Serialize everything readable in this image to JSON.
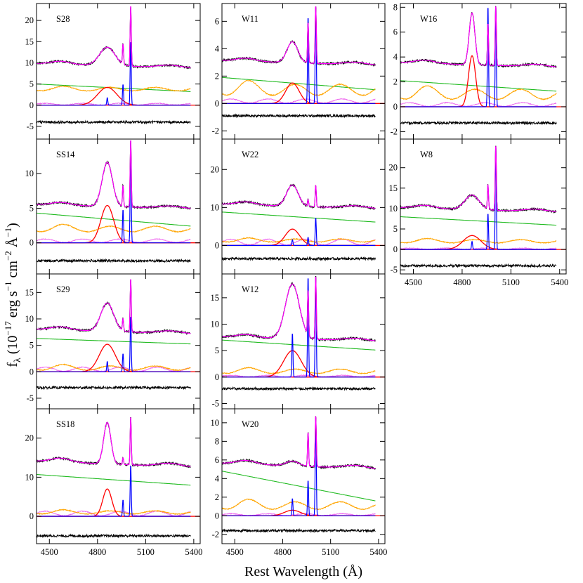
{
  "figure": {
    "xlabel": "Rest Wavelength (Å)",
    "ylabel": "f_λ (10^-17 erg s^-1 cm^-2 Å^-1)",
    "ylabel_parts": {
      "base": "f",
      "sub": "λ",
      "open": " (10",
      "exp1": "−17",
      "mid1": " erg s",
      "exp2": "−1",
      "mid2": " cm",
      "exp3": "−2",
      "mid3": " Å",
      "exp4": "−1",
      "close": ")"
    }
  },
  "colors": {
    "data": "#000000",
    "model": "#ff00ff",
    "powerlaw": "#22bb22",
    "feii": "#ffa500",
    "host": "#ee66ee",
    "broad": "#ff0000",
    "narrow": "#0000ff",
    "residual": "#000000"
  },
  "chart_data": [
    {
      "type": "line",
      "label": "S28",
      "xlim": [
        4420,
        5440
      ],
      "ylim": [
        -8,
        24
      ],
      "yticks": [
        -5,
        0,
        5,
        10,
        15,
        20
      ],
      "xticks": [],
      "continuum": 9.4,
      "powerlaw": [
        5.0,
        3.1
      ],
      "feii": 3.8,
      "residual": -4,
      "host": 0.4,
      "broad": {
        "hb": [
          4.2,
          60
        ],
        "ha": [
          0,
          0
        ]
      },
      "narrow": [
        [
          4861,
          1.8
        ],
        [
          4959,
          5.0
        ],
        [
          5007,
          15.5
        ]
      ],
      "peaks": [
        [
          4861,
          14.5
        ],
        [
          4959,
          16.2
        ],
        [
          5007,
          24
        ]
      ]
    },
    {
      "type": "line",
      "label": "SS14",
      "xlim": [
        4420,
        5440
      ],
      "ylim": [
        -4.5,
        15
      ],
      "yticks": [
        0,
        5,
        10
      ],
      "xticks": [],
      "continuum": 5.3,
      "powerlaw": [
        4.3,
        2.3
      ],
      "feii": 2.0,
      "residual": -2.6,
      "host": 0.5,
      "broad": {
        "hb": [
          5.4,
          40
        ],
        "ha": [
          0,
          0
        ]
      },
      "narrow": [
        [
          4861,
          0
        ],
        [
          4959,
          4.9
        ],
        [
          5007,
          15.0
        ]
      ],
      "peaks": [
        [
          4861,
          12.8
        ],
        [
          4959,
          9.7
        ],
        [
          5007,
          15.3
        ]
      ]
    },
    {
      "type": "line",
      "label": "S29",
      "xlim": [
        4420,
        5440
      ],
      "ylim": [
        -7,
        18.5
      ],
      "yticks": [
        -5,
        0,
        5,
        10,
        15
      ],
      "xticks": [],
      "continuum": 7.7,
      "powerlaw": [
        6.3,
        5.2
      ],
      "feii": 0.7,
      "residual": -3,
      "host": 0.8,
      "broad": {
        "hb": [
          5.2,
          50
        ],
        "ha": [
          0,
          0
        ]
      },
      "narrow": [
        [
          4861,
          2.0
        ],
        [
          4959,
          3.5
        ],
        [
          5007,
          10.8
        ]
      ],
      "peaks": [
        [
          4861,
          14
        ],
        [
          4959,
          11
        ],
        [
          5007,
          18
        ]
      ]
    },
    {
      "type": "line",
      "label": "SS18",
      "xlim": [
        4420,
        5440
      ],
      "ylim": [
        -7,
        27.5
      ],
      "yticks": [
        0,
        10,
        20
      ],
      "xticks": [
        4500,
        4800,
        5100,
        5400
      ],
      "continuum": 13.5,
      "powerlaw": [
        10.7,
        7.8
      ],
      "feii": 1.0,
      "residual": -5,
      "host": 1.2,
      "broad": {
        "hb": [
          7.0,
          28
        ],
        "ha": [
          0,
          0
        ]
      },
      "narrow": [
        [
          4861,
          0
        ],
        [
          4959,
          4.3
        ],
        [
          5007,
          13.5
        ]
      ],
      "peaks": [
        [
          4861,
          26
        ],
        [
          4959,
          16
        ],
        [
          5007,
          26
        ]
      ]
    },
    {
      "type": "line",
      "label": "W11",
      "xlim": [
        4420,
        5440
      ],
      "ylim": [
        -2.6,
        7.3
      ],
      "yticks": [
        -2,
        0,
        2,
        4,
        6
      ],
      "xticks": [],
      "continuum": 3.0,
      "powerlaw": [
        1.9,
        0.95
      ],
      "feii": 1.0,
      "residual": -0.9,
      "host": 0.3,
      "broad": {
        "hb": [
          1.5,
          42
        ],
        "ha": [
          0,
          0
        ]
      },
      "narrow": [
        [
          4861,
          0
        ],
        [
          4959,
          6.5
        ],
        [
          5007,
          7.3
        ]
      ],
      "peaks": [
        [
          4861,
          4.8
        ],
        [
          4959,
          7.3
        ],
        [
          5007,
          7.3
        ]
      ]
    },
    {
      "type": "line",
      "label": "W22",
      "xlim": [
        4420,
        5440
      ],
      "ylim": [
        -7.5,
        28
      ],
      "yticks": [
        0,
        10,
        20
      ],
      "xticks": [],
      "continuum": 10.4,
      "powerlaw": [
        8.8,
        6.0
      ],
      "feii": 1.3,
      "residual": -3.5,
      "host": 1.5,
      "broad": {
        "hb": [
          4.3,
          45
        ],
        "ha": [
          0,
          0
        ]
      },
      "narrow": [
        [
          4861,
          1.6
        ],
        [
          4959,
          2.2
        ],
        [
          5007,
          7.5
        ]
      ],
      "peaks": [
        [
          4861,
          17
        ],
        [
          4959,
          13
        ],
        [
          5007,
          16.2
        ]
      ]
    },
    {
      "type": "line",
      "label": "W12",
      "xlim": [
        4420,
        5440
      ],
      "ylim": [
        -6,
        19.5
      ],
      "yticks": [
        -5,
        0,
        5,
        10,
        15
      ],
      "xticks": [],
      "continuum": 7.3,
      "powerlaw": [
        7.0,
        5.0
      ],
      "feii": 1.1,
      "residual": -2.2,
      "host": 0.3,
      "broad": {
        "hb": [
          5.0,
          55
        ],
        "ha": [
          0,
          0
        ]
      },
      "narrow": [
        [
          4861,
          8.5
        ],
        [
          4959,
          19.5
        ],
        [
          5007,
          19.5
        ]
      ],
      "peaks": [
        [
          4861,
          19.5
        ],
        [
          4959,
          19.5
        ],
        [
          5007,
          19.5
        ]
      ]
    },
    {
      "type": "line",
      "label": "W20",
      "xlim": [
        4420,
        5440
      ],
      "ylim": [
        -3,
        11.5
      ],
      "yticks": [
        -2,
        0,
        2,
        4,
        6,
        8,
        10
      ],
      "xticks": [
        4500,
        4800,
        5100,
        5400
      ],
      "continuum": 5.4,
      "powerlaw": [
        4.8,
        1.4
      ],
      "feii": 1.1,
      "residual": -1.6,
      "host": 0.2,
      "broad": {
        "hb": [
          0.6,
          50
        ],
        "ha": [
          0,
          0
        ]
      },
      "narrow": [
        [
          4861,
          1.9
        ],
        [
          4959,
          3.9
        ],
        [
          5007,
          11.0
        ]
      ],
      "peaks": [
        [
          4861,
          6.0
        ],
        [
          4959,
          10.7
        ],
        [
          5007,
          11.0
        ]
      ]
    },
    {
      "type": "line",
      "label": "W16",
      "xlim": [
        4420,
        5440
      ],
      "ylim": [
        -2.6,
        8.3
      ],
      "yticks": [
        -2,
        0,
        2,
        4,
        6,
        8
      ],
      "xticks": [],
      "continuum": 3.4,
      "powerlaw": [
        2.1,
        1.2
      ],
      "feii": 1.0,
      "residual": -1.3,
      "host": 0.3,
      "broad": {
        "hb": [
          4.1,
          22
        ],
        "ha": [
          0,
          0
        ]
      },
      "narrow": [
        [
          4861,
          0
        ],
        [
          4959,
          8.3
        ],
        [
          5007,
          8.3
        ]
      ],
      "peaks": [
        [
          4861,
          8.3
        ],
        [
          4959,
          8.3
        ],
        [
          5007,
          8.3
        ]
      ]
    },
    {
      "type": "line",
      "label": "W8",
      "xlim": [
        4420,
        5440
      ],
      "ylim": [
        -6,
        27
      ],
      "yticks": [
        -5,
        0,
        5,
        10,
        15,
        20
      ],
      "xticks": [
        4500,
        4800,
        5100,
        5400
      ],
      "continuum": 9.8,
      "powerlaw": [
        8.0,
        5.8
      ],
      "feii": 2.0,
      "residual": -4,
      "host": 0.3,
      "broad": {
        "hb": [
          3.4,
          55
        ],
        "ha": [
          0,
          0
        ]
      },
      "narrow": [
        [
          4861,
          2.0
        ],
        [
          4959,
          9.0
        ],
        [
          5007,
          26
        ]
      ],
      "peaks": [
        [
          4861,
          14
        ],
        [
          4959,
          18.5
        ],
        [
          5007,
          26
        ]
      ]
    }
  ]
}
